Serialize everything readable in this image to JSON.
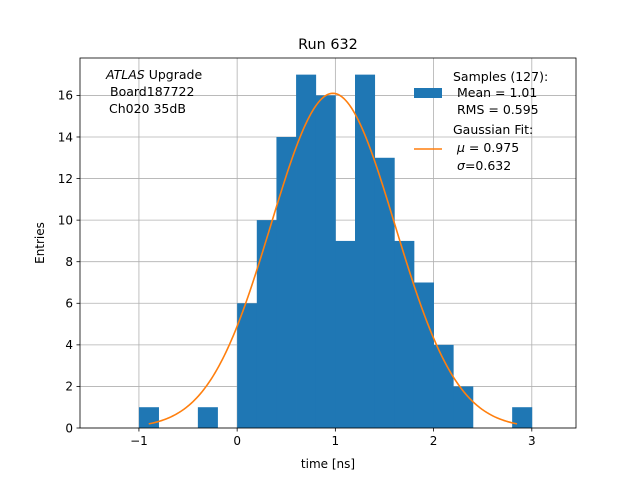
{
  "chart_data": {
    "type": "bar",
    "title": "Run 632",
    "xlabel": "time [ns]",
    "ylabel": "Entries",
    "xlim": [
      -1.6,
      3.45
    ],
    "ylim": [
      0,
      17.8
    ],
    "xticks": [
      -1,
      0,
      1,
      2,
      3
    ],
    "yticks": [
      0,
      2,
      4,
      6,
      8,
      10,
      12,
      14,
      16
    ],
    "grid": true,
    "legend_position": "top-right",
    "bin_width": 0.2,
    "bins": [
      {
        "x0": -1.0,
        "x1": -0.8,
        "count": 1
      },
      {
        "x0": -0.4,
        "x1": -0.2,
        "count": 1
      },
      {
        "x0": 0.0,
        "x1": 0.2,
        "count": 6
      },
      {
        "x0": 0.2,
        "x1": 0.4,
        "count": 10
      },
      {
        "x0": 0.4,
        "x1": 0.6,
        "count": 14
      },
      {
        "x0": 0.6,
        "x1": 0.8,
        "count": 17
      },
      {
        "x0": 0.8,
        "x1": 1.0,
        "count": 16
      },
      {
        "x0": 1.0,
        "x1": 1.2,
        "count": 9
      },
      {
        "x0": 1.2,
        "x1": 1.4,
        "count": 17
      },
      {
        "x0": 1.4,
        "x1": 1.6,
        "count": 13
      },
      {
        "x0": 1.6,
        "x1": 1.8,
        "count": 9
      },
      {
        "x0": 1.8,
        "x1": 2.0,
        "count": 7
      },
      {
        "x0": 2.0,
        "x1": 2.2,
        "count": 4
      },
      {
        "x0": 2.2,
        "x1": 2.4,
        "count": 2
      },
      {
        "x0": 2.8,
        "x1": 3.0,
        "count": 1
      }
    ],
    "gaussian_fit": {
      "mu": 0.975,
      "sigma": 0.632,
      "peak": 16.1,
      "x_range": [
        -0.9,
        2.85
      ]
    },
    "colors": {
      "histogram": "#1f77b4",
      "fit": "#ff7f0e",
      "grid": "#b0b0b0"
    },
    "legend": {
      "samples_title": "Samples (127):",
      "samples_mean": "Mean = 1.01",
      "samples_rms": "RMS = 0.595",
      "fit_title": "Gaussian Fit:",
      "fit_mu_symbol": "μ",
      "fit_mu_value": " = 0.975",
      "fit_sigma_symbol": "σ",
      "fit_sigma_value": "=0.632"
    },
    "annotation": {
      "experiment": "ATLAS",
      "experiment_suffix": " Upgrade",
      "board": "Board187722",
      "channel": "Ch020 35dB"
    }
  }
}
